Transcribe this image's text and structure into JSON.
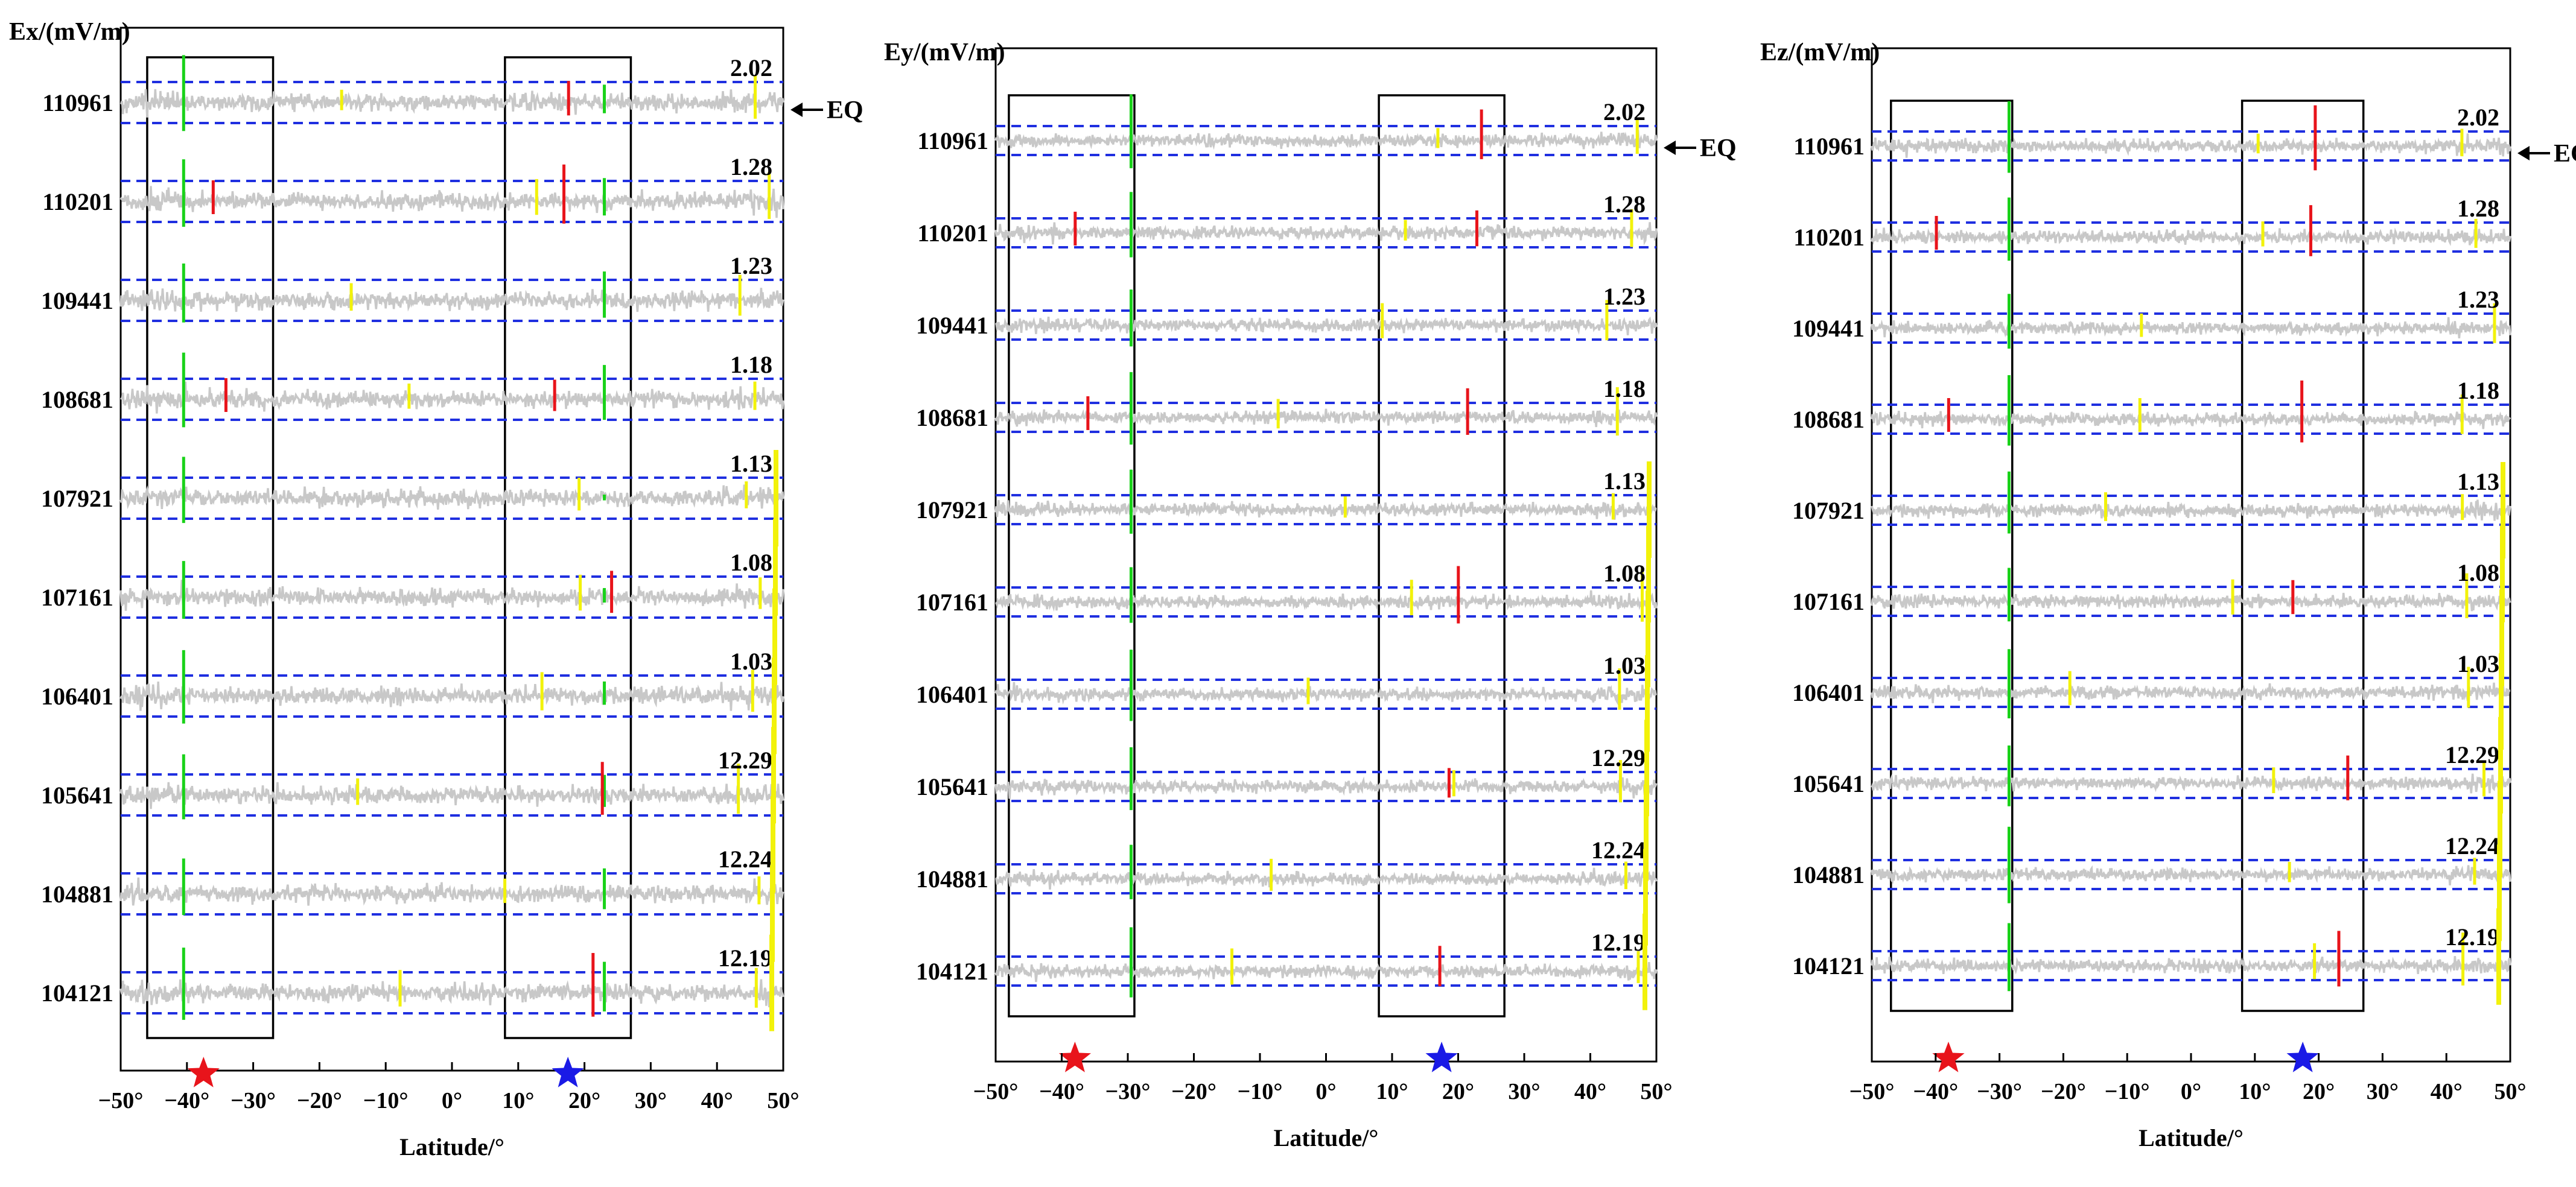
{
  "figure": {
    "description_free": true
  },
  "chart_data": [
    {
      "type": "line",
      "component": "Ex",
      "ylabel": "Ex/(mV/m)",
      "xlabel": "Latitude/°",
      "xlim": [
        -50,
        50
      ],
      "x_ticks": [
        -50,
        -40,
        -30,
        -20,
        -10,
        0,
        10,
        20,
        30,
        40,
        50
      ],
      "x_tick_labels": [
        "−50°",
        "−40°",
        "−30°",
        "−20°",
        "−10°",
        "0°",
        "10°",
        "20°",
        "30°",
        "40°",
        "50°"
      ],
      "orbits": [
        "110961",
        "110201",
        "109441",
        "108681",
        "107921",
        "107161",
        "106401",
        "105641",
        "104881",
        "104121"
      ],
      "dates": [
        "2.02",
        "1.28",
        "1.23",
        "1.18",
        "1.13",
        "1.08",
        "1.03",
        "12.29",
        "12.24",
        "12.19"
      ],
      "threshold_lines": "dashed blue envelope around each orbit trace",
      "boxes_lat": [
        [
          -46,
          -27
        ],
        [
          8,
          27
        ]
      ],
      "earthquake_marker": {
        "label": "EQ",
        "orbit": "110961"
      },
      "epicenter_markers": [
        {
          "name": "red-star",
          "lat": -37.5,
          "color": "#e8141b"
        },
        {
          "name": "blue-star",
          "lat": 17.5,
          "color": "#1a1ae6"
        }
      ]
    },
    {
      "type": "line",
      "component": "Ey",
      "ylabel": "Ey/(mV/m)",
      "xlabel": "Latitude/°",
      "xlim": [
        -50,
        50
      ],
      "x_ticks": [
        -50,
        -40,
        -30,
        -20,
        -10,
        0,
        10,
        20,
        30,
        40,
        50
      ],
      "x_tick_labels": [
        "−50°",
        "−40°",
        "−30°",
        "−20°",
        "−10°",
        "0°",
        "10°",
        "20°",
        "30°",
        "40°",
        "50°"
      ],
      "orbits": [
        "110961",
        "110201",
        "109441",
        "108681",
        "107921",
        "107161",
        "106401",
        "105641",
        "104881",
        "104121"
      ],
      "dates": [
        "2.02",
        "1.28",
        "1.23",
        "1.18",
        "1.13",
        "1.08",
        "1.03",
        "12.29",
        "12.24",
        "12.19"
      ],
      "threshold_lines": "dashed blue envelope around each orbit trace",
      "boxes_lat": [
        [
          -48,
          -29
        ],
        [
          8,
          27
        ]
      ],
      "earthquake_marker": {
        "label": "EQ",
        "orbit": "110961"
      },
      "epicenter_markers": [
        {
          "name": "red-star",
          "lat": -38,
          "color": "#e8141b"
        },
        {
          "name": "blue-star",
          "lat": 17.5,
          "color": "#1a1ae6"
        }
      ]
    },
    {
      "type": "line",
      "component": "Ez",
      "ylabel": "Ez/(mV/m)",
      "xlabel": "Latitude/°",
      "xlim": [
        -50,
        50
      ],
      "x_ticks": [
        -50,
        -40,
        -30,
        -20,
        -10,
        0,
        10,
        20,
        30,
        40,
        50
      ],
      "x_tick_labels": [
        "−50°",
        "−40°",
        "−30°",
        "−20°",
        "−10°",
        "0°",
        "10°",
        "20°",
        "30°",
        "40°",
        "50°"
      ],
      "orbits": [
        "110961",
        "110201",
        "109441",
        "108681",
        "107921",
        "107161",
        "106401",
        "105641",
        "104881",
        "104121"
      ],
      "dates": [
        "2.02",
        "1.28",
        "1.23",
        "1.18",
        "1.13",
        "1.08",
        "1.03",
        "12.29",
        "12.24",
        "12.19"
      ],
      "threshold_lines": "dashed blue envelope around each orbit trace",
      "boxes_lat": [
        [
          -47,
          -28
        ],
        [
          8,
          27
        ]
      ],
      "earthquake_marker": {
        "label": "EQ",
        "orbit": "110961"
      },
      "epicenter_markers": [
        {
          "name": "red-star",
          "lat": -38,
          "color": "#e8141b"
        },
        {
          "name": "blue-star",
          "lat": 17.5,
          "color": "#1a1ae6"
        }
      ]
    }
  ],
  "colors": {
    "trace": "#c8c8c8",
    "threshold": "#1f2fe0",
    "anomaly_red": "#e8141b",
    "anomaly_green": "#19d219",
    "anomaly_yellow": "#f2f20a",
    "box": "#000000"
  }
}
